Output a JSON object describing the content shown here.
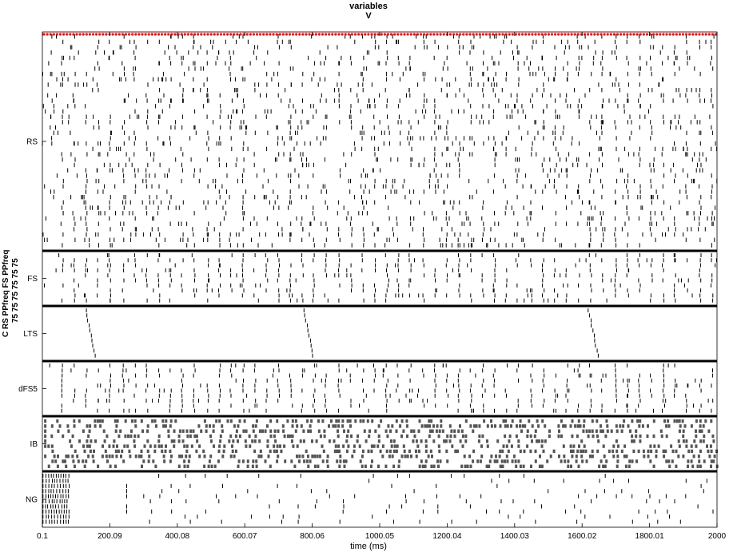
{
  "chart_data": {
    "type": "raster",
    "title": "variables",
    "subtitle": "V",
    "ylabel_lines": [
      "C RS PPfreq FS PPfreq",
      "75 75 75 75 75 75"
    ],
    "xlabel": "time (ms)",
    "xlim": [
      0.1,
      2000
    ],
    "xticks": [
      "0.1",
      "200.09",
      "400.08",
      "600.07",
      "800.06",
      "1000.05",
      "1200.04",
      "1400.03",
      "1600.02",
      "1800.01",
      "2000"
    ],
    "grid": false,
    "populations": [
      {
        "name": "RS",
        "rows": 40,
        "mark_color": "#000000"
      },
      {
        "name": "FS",
        "rows": 10,
        "mark_color": "#000000"
      },
      {
        "name": "LTS",
        "rows": 10,
        "mark_color": "#000000"
      },
      {
        "name": "dFS5",
        "rows": 10,
        "mark_color": "#000000"
      },
      {
        "name": "IB",
        "rows": 10,
        "mark_color": "#555555"
      },
      {
        "name": "NG",
        "rows": 10,
        "mark_color": "#000000"
      }
    ],
    "synchronous_volley_times_ms": [
      60,
      95,
      130,
      165,
      200,
      240,
      275,
      310,
      345,
      380,
      415,
      450,
      490,
      525,
      560,
      595,
      630,
      665,
      700,
      735,
      770,
      805,
      840,
      880,
      915,
      950,
      985,
      1020,
      1055,
      1090,
      1130,
      1165,
      1200,
      1235,
      1270,
      1305,
      1340,
      1375,
      1410,
      1450,
      1485,
      1520,
      1555,
      1590,
      1625,
      1660,
      1700,
      1735,
      1770,
      1805,
      1840,
      1875,
      1910,
      1950,
      1985
    ],
    "lts_burst_times_ms": [
      130,
      775,
      1620
    ],
    "ng_early_burst_ms": [
      0.1,
      80
    ]
  },
  "colors": {
    "background": "#ffffff",
    "axis": "#000000",
    "spike": "#000000",
    "ib_spike": "#555555",
    "top_markers": "#ff0000"
  }
}
